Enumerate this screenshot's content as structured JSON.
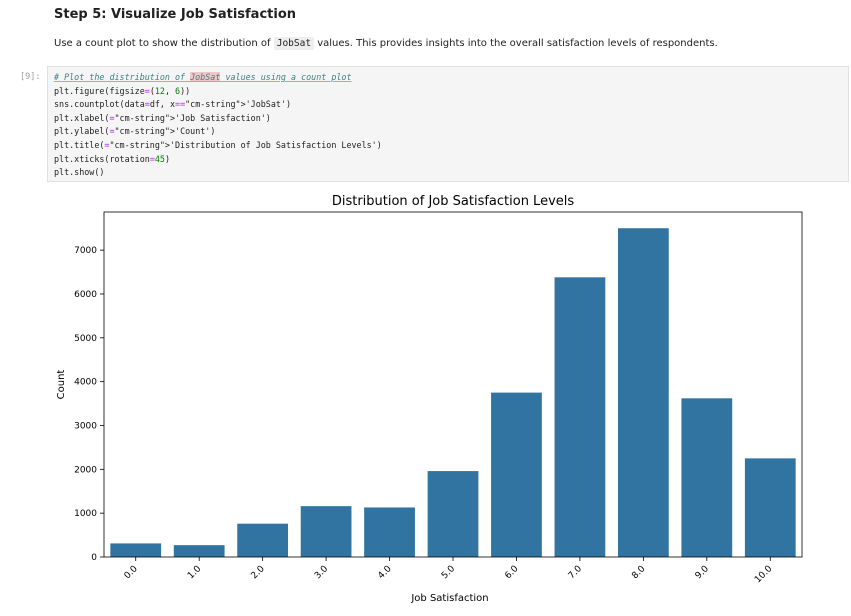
{
  "notebook": {
    "heading": "Step 5: Visualize Job Satisfaction",
    "paragraph": {
      "before": "Use a count plot to show the distribution of ",
      "code": "JobSat",
      "after": " values. This provides insights into the overall satisfaction levels of respondents."
    },
    "cell_prompt": "[9]:",
    "code_lines": [
      "# Plot the distribution of JobSat values using a count plot",
      "plt.figure(figsize=(12, 6))",
      "sns.countplot(data=df, x='JobSat')",
      "plt.xlabel('Job Satisfaction')",
      "plt.ylabel('Count')",
      "plt.title('Distribution of Job Satisfaction Levels')",
      "plt.xticks(rotation=45)",
      "plt.show()"
    ]
  },
  "chart_data": {
    "type": "bar",
    "title": "Distribution of Job Satisfaction Levels",
    "xlabel": "Job Satisfaction",
    "ylabel": "Count",
    "categories": [
      "0.0",
      "1.0",
      "2.0",
      "3.0",
      "4.0",
      "5.0",
      "6.0",
      "7.0",
      "8.0",
      "9.0",
      "10.0"
    ],
    "values": [
      310,
      270,
      760,
      1160,
      1130,
      1960,
      3750,
      6380,
      7500,
      3620,
      2250
    ],
    "ylim": [
      0,
      7870
    ],
    "yticks": [
      0,
      1000,
      2000,
      3000,
      4000,
      5000,
      6000,
      7000
    ],
    "xtick_rotation": 45,
    "bar_color": "#3274a1",
    "grid": false
  }
}
